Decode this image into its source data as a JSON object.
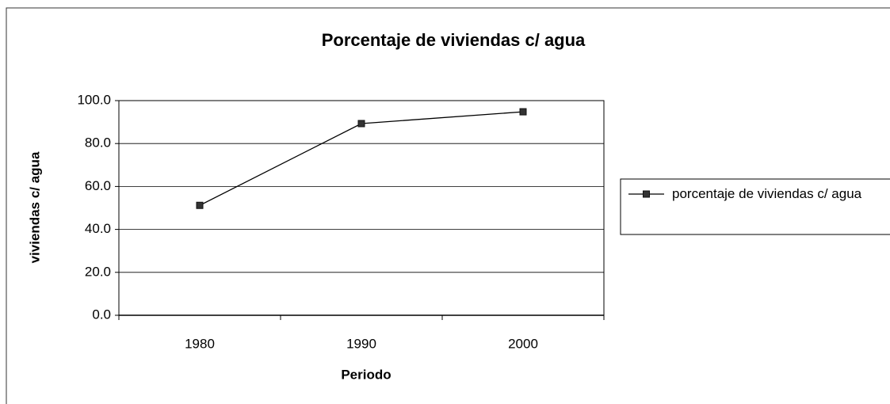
{
  "chart_data": {
    "type": "line",
    "title": "Porcentaje de viviendas c/ agua",
    "xlabel": "Periodo",
    "ylabel": "viviendas c/ agua",
    "categories": [
      "1980",
      "1990",
      "2000"
    ],
    "series": [
      {
        "name": "porcentaje de viviendas c/ agua",
        "color": "#000000",
        "values": [
          51.2,
          89.3,
          94.8
        ]
      }
    ],
    "ylim": [
      0,
      100
    ],
    "yticks": [
      {
        "value": 0,
        "label": "0.0"
      },
      {
        "value": 20,
        "label": "20.0"
      },
      {
        "value": 40,
        "label": "40.0"
      },
      {
        "value": 60,
        "label": "60.0"
      },
      {
        "value": 80,
        "label": "80.0"
      },
      {
        "value": 100,
        "label": "100.0"
      }
    ],
    "grid": true,
    "legend": "right"
  }
}
